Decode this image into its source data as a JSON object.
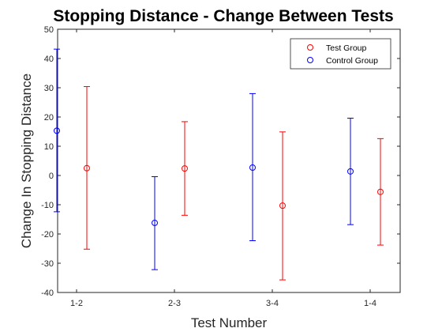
{
  "chart_data": {
    "type": "scatter",
    "title": "Stopping Distance - Change Between Tests",
    "xlabel": "Test Number",
    "ylabel": "Change In Stopping Distance",
    "categories": [
      "1-2",
      "2-3",
      "3-4",
      "1-4"
    ],
    "ylim": [
      -40,
      50
    ],
    "yticks": [
      -40,
      -30,
      -20,
      -10,
      0,
      10,
      20,
      30,
      40,
      50
    ],
    "grid": false,
    "legend_position": "top-right",
    "series": [
      {
        "name": "Test Group",
        "color": "#ff0000",
        "marker": "circle",
        "values": [
          2.5,
          2.4,
          -10.3,
          -5.6
        ],
        "error_low": [
          -25.2,
          -13.6,
          -35.7,
          -23.8
        ],
        "error_high": [
          30.4,
          18.4,
          14.9,
          12.6
        ]
      },
      {
        "name": "Control Group",
        "color": "#0000ff",
        "marker": "circle",
        "values": [
          15.3,
          -16.2,
          2.7,
          1.4
        ],
        "error_low": [
          -12.4,
          -32.2,
          -22.3,
          -16.8
        ],
        "error_high": [
          43.2,
          -0.4,
          28.0,
          19.6
        ]
      }
    ]
  }
}
